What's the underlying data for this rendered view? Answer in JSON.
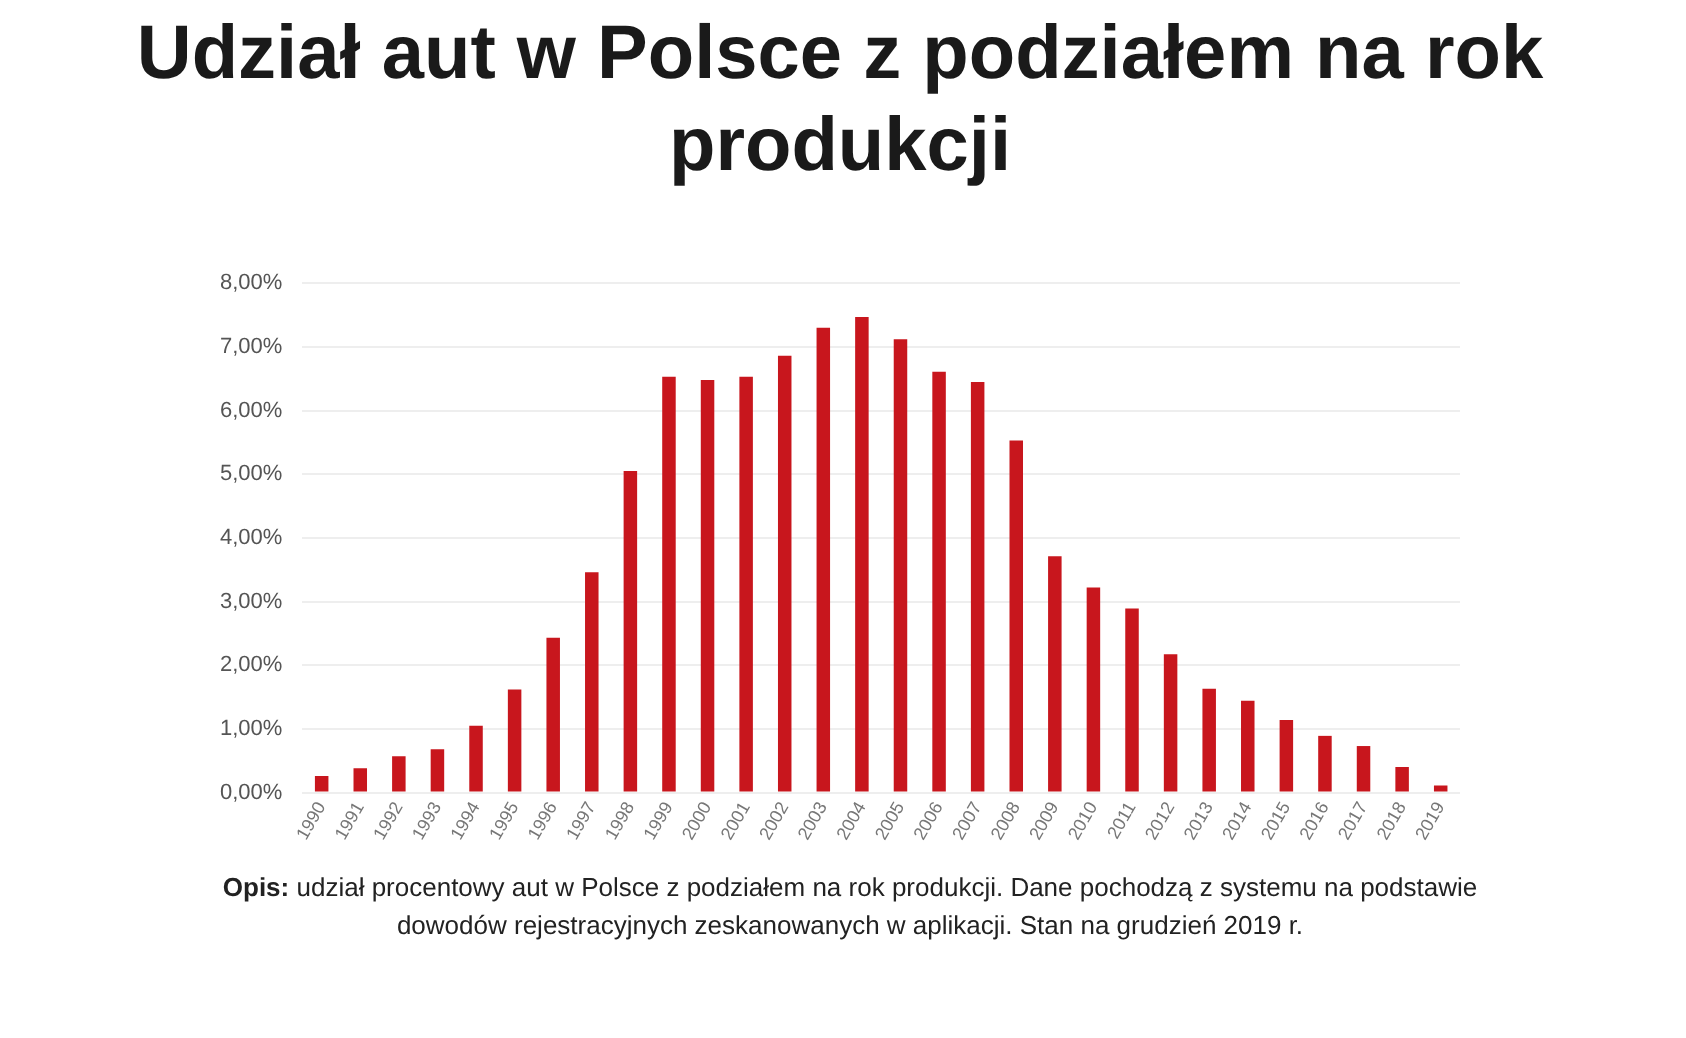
{
  "chart_data": {
    "type": "bar",
    "title": "Udział aut w Polsce z podziałem na rok produkcji",
    "categories": [
      "1990",
      "1991",
      "1992",
      "1993",
      "1994",
      "1995",
      "1996",
      "1997",
      "1998",
      "1999",
      "2000",
      "2001",
      "2002",
      "2003",
      "2004",
      "2005",
      "2006",
      "2007",
      "2008",
      "2009",
      "2010",
      "2011",
      "2012",
      "2013",
      "2014",
      "2015",
      "2016",
      "2017",
      "2018",
      "2019"
    ],
    "values": [
      0.26,
      0.38,
      0.57,
      0.68,
      1.05,
      1.62,
      2.43,
      3.46,
      5.05,
      6.53,
      6.48,
      6.53,
      6.86,
      7.3,
      7.47,
      7.12,
      6.61,
      6.45,
      5.53,
      3.71,
      3.22,
      2.89,
      2.17,
      1.63,
      1.44,
      1.14,
      0.89,
      0.73,
      0.4,
      0.11
    ],
    "color": "#c8161d",
    "ylim": [
      0,
      8
    ],
    "yticks": [
      {
        "value": 0,
        "label": "0,00%"
      },
      {
        "value": 1,
        "label": "1,00%"
      },
      {
        "value": 2,
        "label": "2,00%"
      },
      {
        "value": 3,
        "label": "3,00%"
      },
      {
        "value": 4,
        "label": "4,00%"
      },
      {
        "value": 5,
        "label": "5,00%"
      },
      {
        "value": 6,
        "label": "6,00%"
      },
      {
        "value": 7,
        "label": "7,00%"
      },
      {
        "value": 8,
        "label": "8,00%"
      }
    ],
    "grid": "y",
    "annotations": [
      "Opis: udział procentowy aut w Polsce z podziałem na rok produkcji. Dane pochodzą z systemu na podstawie dowodów rejestracyjnych zeskanowanych w aplikacji. Stan na grudzień 2019 r."
    ]
  }
}
